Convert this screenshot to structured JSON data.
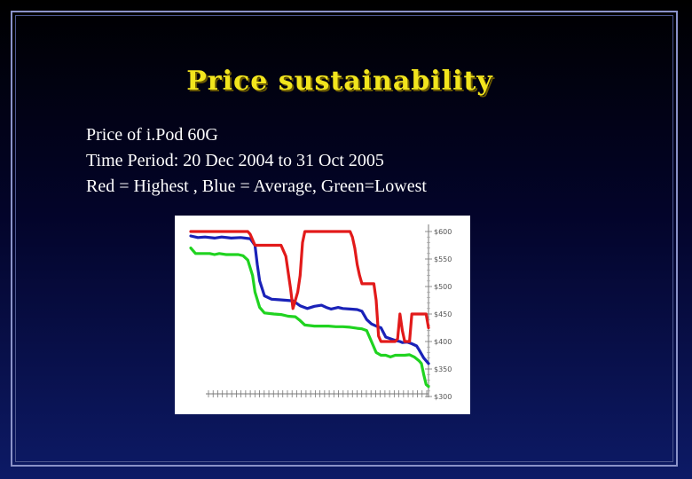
{
  "slide": {
    "title": "Price sustainability",
    "lines": [
      "Price of i.Pod 60G",
      "Time Period: 20 Dec 2004 to 31 Oct 2005",
      "Red = Highest , Blue = Average, Green=Lowest"
    ]
  },
  "chart_data": {
    "type": "line",
    "y_ticks": [
      "$600",
      "$550",
      "$500",
      "$450",
      "$400",
      "$350",
      "$300"
    ],
    "ylim": [
      300,
      600
    ],
    "x_range": [
      0,
      100
    ],
    "x_tick_count": 48,
    "grid": false,
    "colors": {
      "highest": "#e21a1a",
      "average": "#1a22b8",
      "lowest": "#20d320"
    },
    "series": [
      {
        "key": "highest",
        "values": [
          [
            0,
            600
          ],
          [
            24,
            600
          ],
          [
            25,
            595
          ],
          [
            27,
            575
          ],
          [
            38,
            575
          ],
          [
            39,
            565
          ],
          [
            40,
            555
          ],
          [
            42,
            495
          ],
          [
            43,
            460
          ],
          [
            45,
            490
          ],
          [
            46,
            520
          ],
          [
            47,
            580
          ],
          [
            48,
            600
          ],
          [
            67,
            600
          ],
          [
            68,
            590
          ],
          [
            69,
            570
          ],
          [
            70,
            540
          ],
          [
            71,
            520
          ],
          [
            72,
            505
          ],
          [
            77,
            505
          ],
          [
            78,
            475
          ],
          [
            79,
            410
          ],
          [
            80,
            400
          ],
          [
            84,
            400
          ],
          [
            86,
            400
          ],
          [
            87,
            405
          ],
          [
            88,
            450
          ],
          [
            89,
            420
          ],
          [
            90,
            400
          ],
          [
            92,
            400
          ],
          [
            93,
            450
          ],
          [
            99,
            450
          ],
          [
            100,
            425
          ]
        ]
      },
      {
        "key": "average",
        "values": [
          [
            0,
            592
          ],
          [
            3,
            589
          ],
          [
            6,
            590
          ],
          [
            10,
            588
          ],
          [
            13,
            590
          ],
          [
            17,
            588
          ],
          [
            21,
            589
          ],
          [
            25,
            587
          ],
          [
            27,
            575
          ],
          [
            28,
            540
          ],
          [
            29,
            510
          ],
          [
            31,
            483
          ],
          [
            34,
            477
          ],
          [
            37,
            476
          ],
          [
            40,
            475
          ],
          [
            43,
            474
          ],
          [
            46,
            465
          ],
          [
            49,
            460
          ],
          [
            52,
            464
          ],
          [
            55,
            466
          ],
          [
            57,
            462
          ],
          [
            59,
            459
          ],
          [
            62,
            462
          ],
          [
            64,
            460
          ],
          [
            67,
            459
          ],
          [
            70,
            458
          ],
          [
            72,
            455
          ],
          [
            74,
            440
          ],
          [
            76,
            432
          ],
          [
            78,
            428
          ],
          [
            80,
            425
          ],
          [
            82,
            408
          ],
          [
            84,
            405
          ],
          [
            86,
            402
          ],
          [
            88,
            400
          ],
          [
            89,
            398
          ],
          [
            91,
            399
          ],
          [
            93,
            396
          ],
          [
            95,
            392
          ],
          [
            96,
            385
          ],
          [
            98,
            370
          ],
          [
            100,
            360
          ]
        ]
      },
      {
        "key": "lowest",
        "values": [
          [
            0,
            570
          ],
          [
            2,
            560
          ],
          [
            5,
            560
          ],
          [
            8,
            560
          ],
          [
            10,
            558
          ],
          [
            12,
            560
          ],
          [
            15,
            558
          ],
          [
            20,
            558
          ],
          [
            22,
            556
          ],
          [
            24,
            548
          ],
          [
            26,
            520
          ],
          [
            27,
            490
          ],
          [
            29,
            462
          ],
          [
            31,
            452
          ],
          [
            35,
            450
          ],
          [
            38,
            449
          ],
          [
            41,
            446
          ],
          [
            44,
            445
          ],
          [
            46,
            438
          ],
          [
            48,
            430
          ],
          [
            52,
            428
          ],
          [
            55,
            428
          ],
          [
            58,
            428
          ],
          [
            61,
            427
          ],
          [
            64,
            427
          ],
          [
            67,
            426
          ],
          [
            70,
            424
          ],
          [
            72,
            423
          ],
          [
            74,
            420
          ],
          [
            76,
            400
          ],
          [
            78,
            380
          ],
          [
            80,
            375
          ],
          [
            82,
            375
          ],
          [
            84,
            372
          ],
          [
            86,
            375
          ],
          [
            90,
            375
          ],
          [
            92,
            376
          ],
          [
            94,
            372
          ],
          [
            96,
            365
          ],
          [
            97,
            360
          ],
          [
            98,
            340
          ],
          [
            99,
            322
          ],
          [
            100,
            318
          ]
        ]
      }
    ]
  }
}
